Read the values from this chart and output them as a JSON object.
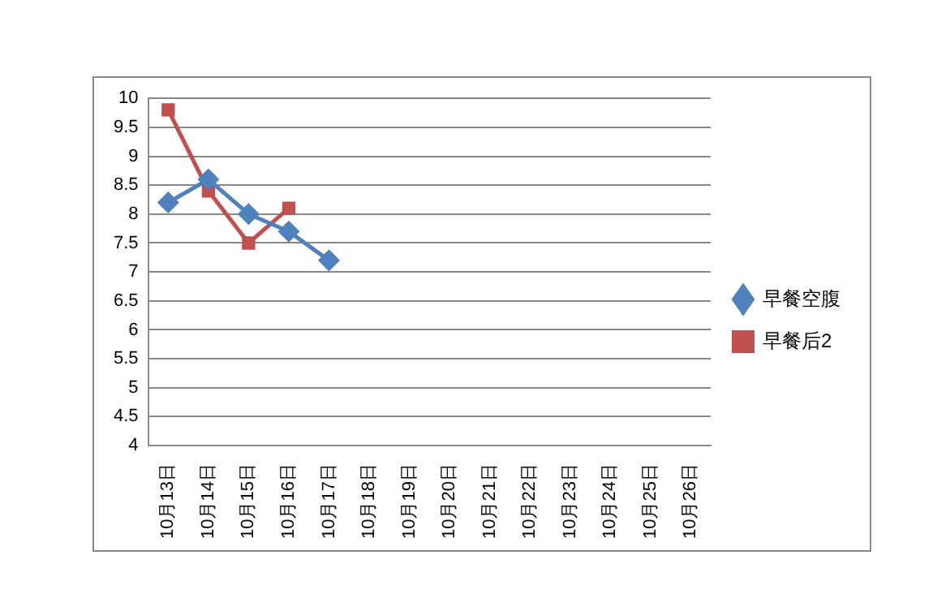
{
  "chart_data": {
    "type": "line",
    "categories": [
      "10月13日",
      "10月14日",
      "10月15日",
      "10月16日",
      "10月17日",
      "10月18日",
      "10月19日",
      "10月20日",
      "10月21日",
      "10月22日",
      "10月23日",
      "10月24日",
      "10月25日",
      "10月26日"
    ],
    "series": [
      {
        "name": "早餐空腹",
        "color": "#4f81bd",
        "marker": "diamond",
        "values": [
          8.2,
          8.6,
          8.0,
          7.7,
          7.2,
          null,
          null,
          null,
          null,
          null,
          null,
          null,
          null,
          null
        ]
      },
      {
        "name": "早餐后2",
        "color": "#c0504d",
        "marker": "square",
        "values": [
          9.8,
          8.4,
          7.5,
          8.1,
          null,
          null,
          null,
          null,
          null,
          null,
          null,
          null,
          null,
          null
        ]
      }
    ],
    "ylim": [
      4,
      10
    ],
    "yticks": [
      4,
      4.5,
      5,
      5.5,
      6,
      6.5,
      7,
      7.5,
      8,
      8.5,
      9,
      9.5,
      10
    ],
    "grid": "y",
    "legend": "right",
    "line_style": "solid"
  }
}
